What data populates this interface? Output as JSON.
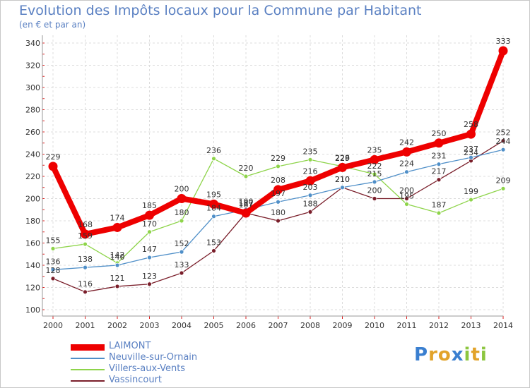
{
  "header": {
    "title": "Evolution des Impôts locaux pour la Commune par Habitant",
    "subtitle": "(en € et par an)"
  },
  "brand": {
    "text": "Proxiti",
    "letters": [
      {
        "ch": "P",
        "color": "#3a7fd0"
      },
      {
        "ch": "r",
        "color": "#e2a32a"
      },
      {
        "ch": "o",
        "color": "#e2a32a"
      },
      {
        "ch": "x",
        "color": "#3a7fd0"
      },
      {
        "ch": "i",
        "color": "#8cc63f"
      },
      {
        "ch": "t",
        "color": "#e2a32a"
      },
      {
        "ch": "i",
        "color": "#8cc63f"
      }
    ]
  },
  "chart_data": {
    "type": "line",
    "title": "Evolution des Impôts locaux pour la Commune par Habitant",
    "subtitle": "(en € et par an)",
    "xlabel": "",
    "ylabel": "",
    "x": [
      "2000",
      "2001",
      "2002",
      "2003",
      "2004",
      "2005",
      "2006",
      "2007",
      "2008",
      "2009",
      "2010",
      "2011",
      "2012",
      "2013",
      "2014"
    ],
    "ylim": [
      100,
      340
    ],
    "yticks": [
      100,
      120,
      140,
      160,
      180,
      200,
      220,
      240,
      260,
      280,
      300,
      320,
      340
    ],
    "grid": true,
    "legend_position": "bottom-left",
    "series": [
      {
        "name": "LAIMONT",
        "color": "#ee0000",
        "values": [
          229,
          168,
          174,
          185,
          200,
          195,
          187,
          208,
          216,
          228,
          235,
          242,
          250,
          258,
          333
        ]
      },
      {
        "name": "Neuville-sur-Ornain",
        "color": "#4f8fc8",
        "values": [
          136,
          138,
          140,
          147,
          152,
          184,
          190,
          197,
          203,
          210,
          215,
          224,
          231,
          237,
          244
        ]
      },
      {
        "name": "Villers-aux-Vents",
        "color": "#8ed44a",
        "values": [
          155,
          159,
          142,
          170,
          180,
          236,
          220,
          229,
          235,
          229,
          222,
          195,
          187,
          199,
          209
        ]
      },
      {
        "name": "Vassincourt",
        "color": "#7a1e2a",
        "values": [
          128,
          116,
          121,
          123,
          133,
          153,
          187,
          180,
          188,
          210,
          200,
          200,
          217,
          234,
          252
        ]
      }
    ]
  }
}
